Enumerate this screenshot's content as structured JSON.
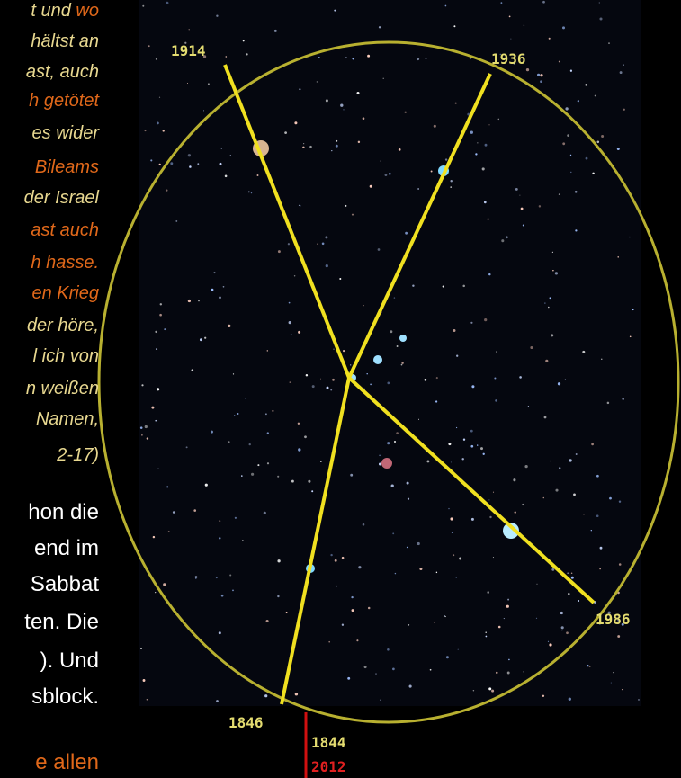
{
  "quote_lines": [
    {
      "segments": [
        "t und ",
        "wo"
      ]
    },
    {
      "segments": [
        "hältst an"
      ]
    },
    {
      "segments": [
        "ast, auch"
      ]
    },
    {
      "segments": [
        "h getötet"
      ]
    },
    {
      "segments": [
        "es wider"
      ]
    },
    {
      "segments": [
        "Bileams"
      ]
    },
    {
      "segments": [
        "der Israel"
      ]
    },
    {
      "segments": [
        "ast auch"
      ]
    },
    {
      "segments": [
        "h hasse."
      ]
    },
    {
      "segments": [
        "en Krieg"
      ]
    },
    {
      "segments": [
        "der höre,"
      ]
    },
    {
      "segments": [
        "l ich von"
      ]
    },
    {
      "segments": [
        "n weißen"
      ]
    },
    {
      "segments": [
        "Namen,"
      ]
    },
    {
      "segments": [
        "2-17)"
      ]
    }
  ],
  "body_lines": [
    "hon die",
    "end im",
    "Sabbat",
    "ten. Die",
    "). Und",
    "sblock."
  ],
  "closing_line": "e allen",
  "figure": {
    "labels": {
      "top_left": "1914",
      "top_right": "1936",
      "bottom_right": "1986",
      "bottom_left": "1846",
      "marker_top": "1844",
      "marker_bottom": "2012"
    }
  }
}
